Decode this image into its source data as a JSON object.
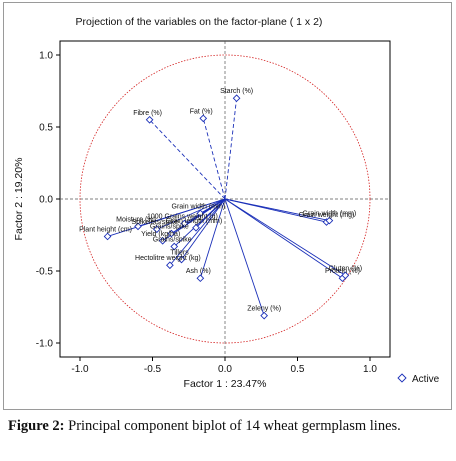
{
  "chart_data": {
    "type": "scatter",
    "title": "Projection of the variables on the factor-plane ( 1 x 2)",
    "xlabel": "Factor 1 : 23.47%",
    "ylabel": "Factor 2 : 19.20%",
    "xlim": [
      -1.1,
      1.1
    ],
    "ylim": [
      -1.1,
      1.1
    ],
    "xticks": [
      "-1.0",
      "-0.5",
      "0.0",
      "0.5",
      "1.0"
    ],
    "yticks": [
      "1.0",
      "0.5",
      "0.0",
      "-0.5",
      "-1.0"
    ],
    "grid": false,
    "unit_circle": true,
    "legend": {
      "position": "bottom-right",
      "entries": [
        "Active"
      ]
    },
    "series": [
      {
        "name": "Active",
        "points": [
          {
            "label": "Starch (%)",
            "x": 0.08,
            "y": 0.7,
            "style": "dashed"
          },
          {
            "label": "Fat (%)",
            "x": -0.15,
            "y": 0.56,
            "style": "dashed"
          },
          {
            "label": "Fibre (%)",
            "x": -0.52,
            "y": 0.55,
            "style": "dashed"
          },
          {
            "label": "Grain width (mm)",
            "x": -0.17,
            "y": -0.1,
            "style": "solid"
          },
          {
            "label": "1000 Grains weight (g)",
            "x": -0.28,
            "y": -0.17,
            "style": "solid"
          },
          {
            "label": "Grain length (mm)",
            "x": -0.2,
            "y": -0.2,
            "style": "solid"
          },
          {
            "label": "Moisture (%)",
            "x": -0.6,
            "y": -0.19,
            "style": "solid"
          },
          {
            "label": "Plant height (cm)",
            "x": -0.81,
            "y": -0.26,
            "style": "solid"
          },
          {
            "label": "Spikelets/spike",
            "x": -0.47,
            "y": -0.21,
            "style": "solid"
          },
          {
            "label": "Grains/spike",
            "x": -0.37,
            "y": -0.24,
            "style": "solid"
          },
          {
            "label": "Yield (kg/ha)",
            "x": -0.43,
            "y": -0.29,
            "style": "solid"
          },
          {
            "label": "Grains/spike",
            "x": -0.35,
            "y": -0.33,
            "style": "solid"
          },
          {
            "label": "Tillers",
            "x": -0.3,
            "y": -0.42,
            "style": "solid"
          },
          {
            "label": "Hectolitre weight (kg)",
            "x": -0.38,
            "y": -0.46,
            "style": "solid"
          },
          {
            "label": "Ash (%)",
            "x": -0.17,
            "y": -0.55,
            "style": "solid"
          },
          {
            "label": "Zeleny (%)",
            "x": 0.27,
            "y": -0.81,
            "style": "solid"
          },
          {
            "label": "Grain weight (mg)",
            "x": 0.7,
            "y": -0.16,
            "style": "solid"
          },
          {
            "label": "Grain width (mm)",
            "x": 0.72,
            "y": -0.15,
            "style": "solid"
          },
          {
            "label": "Protein (%)",
            "x": 0.81,
            "y": -0.55,
            "style": "solid"
          },
          {
            "label": "Gluten (%)",
            "x": 0.83,
            "y": -0.53,
            "style": "solid"
          }
        ]
      }
    ]
  },
  "caption": {
    "label": "Figure 2:",
    "text": " Principal component biplot of 14 wheat germplasm lines."
  },
  "colors": {
    "vector": "#1a2fb8",
    "circle": "#d42020",
    "axis": "#000000",
    "zero_line": "#555555"
  }
}
